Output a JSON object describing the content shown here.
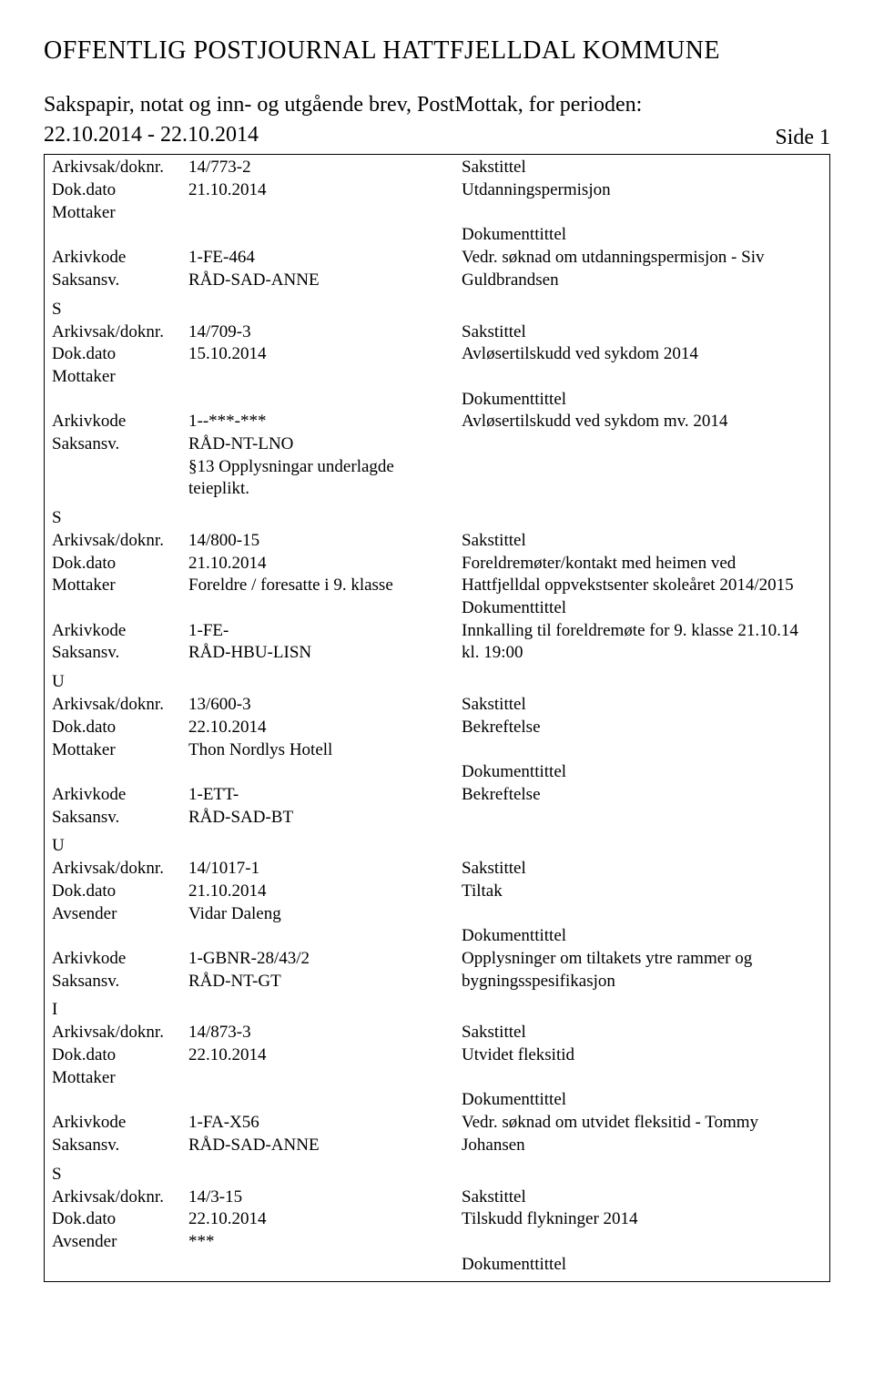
{
  "header": {
    "title": "OFFENTLIG POSTJOURNAL HATTFJELLDAL KOMMUNE",
    "subtitle_line1": "Sakspapir, notat og inn- og utgående brev, PostMottak, for perioden:",
    "subtitle_line2": "22.10.2014 - 22.10.2014",
    "side_label": "Side 1"
  },
  "labels": {
    "arkivsak": "Arkivsak/doknr.",
    "dokdato": "Dok.dato",
    "mottaker": "Mottaker",
    "avsender": "Avsender",
    "arkivkode": "Arkivkode",
    "saksansv": "Saksansv.",
    "sakstittel": "Sakstittel",
    "dokumenttittel": "Dokumenttittel"
  },
  "records": [
    {
      "type_before": "",
      "arkivsak": "14/773-2",
      "dokdato": "21.10.2014",
      "dokdato_title": "Utdanningspermisjon",
      "party_label": "Mottaker",
      "party_value": "",
      "arkivkode": "1-FE-464",
      "arkivkode_text": "Vedr. søknad om utdanningspermisjon - Siv",
      "saksansv": "RÅD-SAD-ANNE",
      "saksansv_text": "Guldbrandsen",
      "extra_lines": [],
      "type_after": "S"
    },
    {
      "type_before": "",
      "arkivsak": "14/709-3",
      "dokdato": "15.10.2014",
      "dokdato_title": "Avløsertilskudd ved sykdom 2014",
      "party_label": "Mottaker",
      "party_value": "",
      "arkivkode": "1--***-***",
      "arkivkode_text": "Avløsertilskudd ved sykdom mv. 2014",
      "saksansv": "RÅD-NT-LNO",
      "saksansv_text": "",
      "extra_lines": [
        "§13 Opplysningar underlagde",
        "teieplikt."
      ],
      "type_after": "S"
    },
    {
      "type_before": "",
      "arkivsak": "14/800-15",
      "dokdato": "21.10.2014",
      "dokdato_title": "Foreldremøter/kontakt med heimen ved",
      "party_label": "Mottaker",
      "party_value": "Foreldre / foresatte i 9. klasse",
      "party_text": "Hattfjelldal oppvekstsenter skoleåret 2014/2015",
      "arkivkode": "1-FE-",
      "arkivkode_text": "Innkalling til foreldremøte for 9. klasse 21.10.14",
      "saksansv": "RÅD-HBU-LISN",
      "saksansv_text": "kl. 19:00",
      "extra_lines": [],
      "type_after": "U"
    },
    {
      "type_before": "",
      "arkivsak": "13/600-3",
      "dokdato": "22.10.2014",
      "dokdato_title": "Bekreftelse",
      "party_label": "Mottaker",
      "party_value": "Thon Nordlys Hotell",
      "arkivkode": "1-ETT-",
      "arkivkode_text": "Bekreftelse",
      "saksansv": "RÅD-SAD-BT",
      "saksansv_text": "",
      "extra_lines": [],
      "type_after": "U"
    },
    {
      "type_before": "",
      "arkivsak": "14/1017-1",
      "dokdato": "21.10.2014",
      "dokdato_title": "Tiltak",
      "party_label": "Avsender",
      "party_value": "Vidar Daleng",
      "arkivkode": "1-GBNR-28/43/2",
      "arkivkode_text": "Opplysninger om tiltakets ytre rammer og",
      "saksansv": "RÅD-NT-GT",
      "saksansv_text": "bygningsspesifikasjon",
      "extra_lines": [],
      "type_after": "I"
    },
    {
      "type_before": "",
      "arkivsak": "14/873-3",
      "dokdato": "22.10.2014",
      "dokdato_title": "Utvidet fleksitid",
      "party_label": "Mottaker",
      "party_value": "",
      "arkivkode": "1-FA-X56",
      "arkivkode_text": "Vedr. søknad om utvidet fleksitid - Tommy",
      "saksansv": "RÅD-SAD-ANNE",
      "saksansv_text": "Johansen",
      "extra_lines": [],
      "type_after": "S"
    },
    {
      "type_before": "",
      "arkivsak": "14/3-15",
      "dokdato": "22.10.2014",
      "dokdato_title": "Tilskudd flykninger 2014",
      "party_label": "Avsender",
      "party_value": "***",
      "arkivkode": null,
      "arkivkode_text": "",
      "saksansv": null,
      "saksansv_text": "",
      "extra_lines": [],
      "type_after": ""
    }
  ]
}
